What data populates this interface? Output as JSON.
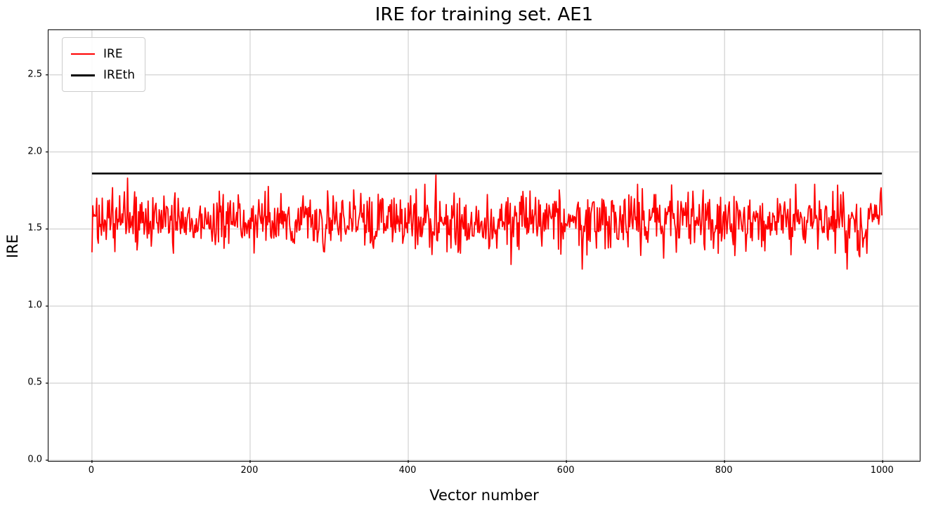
{
  "chart_data": {
    "type": "line",
    "title": "IRE for training set. AE1",
    "xlabel": "Vector number",
    "ylabel": "IRE",
    "xlim": [
      -55,
      1046
    ],
    "ylim": [
      0,
      2.79
    ],
    "grid": true,
    "xticks": [
      {
        "label": "0",
        "value": 0
      },
      {
        "label": "200",
        "value": 200
      },
      {
        "label": "400",
        "value": 400
      },
      {
        "label": "600",
        "value": 600
      },
      {
        "label": "800",
        "value": 800
      },
      {
        "label": "1000",
        "value": 1000
      }
    ],
    "yticks": [
      {
        "label": "0.0",
        "value": 0.0
      },
      {
        "label": "0.5",
        "value": 0.5
      },
      {
        "label": "1.0",
        "value": 1.0
      },
      {
        "label": "1.5",
        "value": 1.5
      },
      {
        "label": "2.0",
        "value": 2.0
      },
      {
        "label": "2.5",
        "value": 2.5
      }
    ],
    "legend": {
      "position": "upper-left",
      "entries": [
        {
          "label": "IRE",
          "color": "#ff0000",
          "line_width": 2
        },
        {
          "label": "IREth",
          "color": "#000000",
          "line_width": 3
        }
      ]
    },
    "series": [
      {
        "name": "IRE",
        "kind": "noisy-line",
        "color": "#ff0000",
        "line_width": 1.8,
        "n_points": 1000,
        "x_start": 0,
        "x_end": 999,
        "mean": 1.545,
        "std": 0.095,
        "min": 1.24,
        "max": 1.85,
        "seed": 42,
        "notable_points": [
          {
            "x": 45,
            "y": 1.83
          },
          {
            "x": 435,
            "y": 1.85
          },
          {
            "x": 530,
            "y": 1.27
          },
          {
            "x": 690,
            "y": 1.79
          },
          {
            "x": 890,
            "y": 1.79
          },
          {
            "x": 955,
            "y": 1.24
          }
        ]
      },
      {
        "name": "IREth",
        "kind": "constant-line",
        "color": "#000000",
        "line_width": 2.6,
        "value": 1.86,
        "x_start": 0,
        "x_end": 999
      }
    ],
    "grid_color": "#c8c8c8"
  }
}
